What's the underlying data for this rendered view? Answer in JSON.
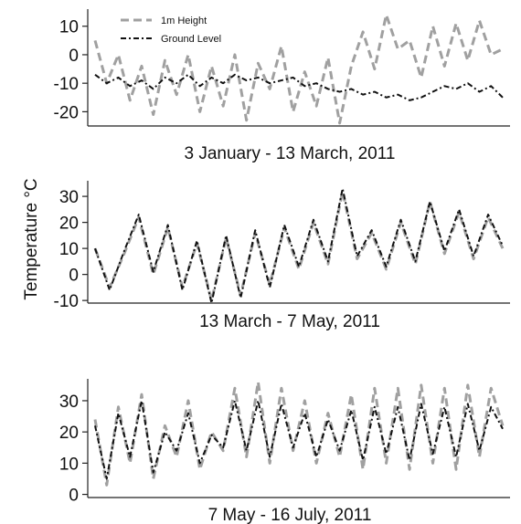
{
  "figure": {
    "ylabel": "Temperature °C",
    "legend": {
      "placement": "top-left",
      "entries": [
        {
          "label": "1m Height",
          "color": "#a0a0a0"
        },
        {
          "label": "Ground Level",
          "color": "#111111"
        }
      ]
    }
  },
  "chart_data": [
    {
      "type": "line",
      "title": "3 January - 13 March, 2011",
      "xlabel": "",
      "ylabel": "Temperature °C",
      "ylim": [
        -25,
        16
      ],
      "yticks": [
        10,
        0,
        -10,
        -20
      ],
      "grid": false,
      "series": [
        {
          "name": "1m Height",
          "color": "#a0a0a0",
          "x": [
            0,
            2,
            4,
            6,
            8,
            10,
            12,
            14,
            16,
            18,
            20,
            22,
            24,
            26,
            28,
            30,
            32,
            34,
            36,
            38,
            40,
            42,
            44,
            46,
            48,
            50,
            52,
            54,
            56,
            58,
            60,
            62,
            64,
            66,
            68,
            70
          ],
          "values": [
            5,
            -10,
            0,
            -16,
            -4,
            -21,
            -2,
            -14,
            0,
            -20,
            -4,
            -18,
            0,
            -23,
            -3,
            -12,
            3,
            -20,
            -6,
            -18,
            -1,
            -24,
            -4,
            8,
            -5,
            14,
            2,
            5,
            -8,
            10,
            -4,
            11,
            -2,
            12,
            0,
            2
          ]
        },
        {
          "name": "Ground Level",
          "color": "#111111",
          "x": [
            0,
            2,
            4,
            6,
            8,
            10,
            12,
            14,
            16,
            18,
            20,
            22,
            24,
            26,
            28,
            30,
            32,
            34,
            36,
            38,
            40,
            42,
            44,
            46,
            48,
            50,
            52,
            54,
            56,
            58,
            60,
            62,
            64,
            66,
            68,
            70
          ],
          "values": [
            -7,
            -10,
            -8,
            -11,
            -9,
            -12,
            -8,
            -10,
            -7,
            -11,
            -8,
            -10,
            -7,
            -9,
            -8,
            -10,
            -9,
            -8,
            -11,
            -10,
            -12,
            -13,
            -12,
            -14,
            -13,
            -15,
            -14,
            -16,
            -15,
            -13,
            -11,
            -12,
            -10,
            -13,
            -11,
            -15
          ]
        }
      ]
    },
    {
      "type": "line",
      "title": "13 March - 7 May, 2011",
      "xlabel": "",
      "ylabel": "Temperature °C",
      "ylim": [
        -11,
        36
      ],
      "yticks": [
        30,
        20,
        10,
        0,
        -10
      ],
      "grid": false,
      "series": [
        {
          "name": "1m Height",
          "color": "#a0a0a0",
          "x": [
            0,
            2,
            4,
            6,
            8,
            10,
            12,
            14,
            16,
            18,
            20,
            22,
            24,
            26,
            28,
            30,
            32,
            34,
            36,
            38,
            40,
            42,
            44,
            46,
            48,
            50,
            52,
            54,
            56
          ],
          "values": [
            10,
            -5,
            8,
            22,
            0,
            18,
            -5,
            12,
            -10,
            14,
            -8,
            16,
            -4,
            18,
            2,
            20,
            4,
            32,
            6,
            16,
            2,
            20,
            4,
            28,
            8,
            24,
            6,
            22,
            10
          ]
        },
        {
          "name": "Ground Level",
          "color": "#111111",
          "x": [
            0,
            2,
            4,
            6,
            8,
            10,
            12,
            14,
            16,
            18,
            20,
            22,
            24,
            26,
            28,
            30,
            32,
            34,
            36,
            38,
            40,
            42,
            44,
            46,
            48,
            50,
            52,
            54,
            56
          ],
          "values": [
            10,
            -6,
            9,
            23,
            1,
            19,
            -6,
            13,
            -11,
            15,
            -9,
            17,
            -5,
            19,
            3,
            21,
            5,
            33,
            7,
            17,
            3,
            21,
            5,
            28,
            9,
            25,
            7,
            23,
            11
          ]
        }
      ]
    },
    {
      "type": "line",
      "title": "7 May - 16 July, 2011",
      "xlabel": "",
      "ylabel": "Temperature °C",
      "ylim": [
        -1,
        37
      ],
      "yticks": [
        30,
        20,
        10,
        0
      ],
      "grid": false,
      "series": [
        {
          "name": "1m Height",
          "color": "#a0a0a0",
          "x": [
            0,
            2,
            4,
            6,
            8,
            10,
            12,
            14,
            16,
            18,
            20,
            22,
            24,
            26,
            28,
            30,
            32,
            34,
            36,
            38,
            40,
            42,
            44,
            46,
            48,
            50,
            52,
            54,
            56,
            58,
            60,
            62,
            64,
            66,
            68,
            70
          ],
          "values": [
            24,
            3,
            28,
            10,
            32,
            5,
            22,
            12,
            30,
            8,
            20,
            14,
            34,
            12,
            36,
            10,
            34,
            14,
            30,
            10,
            26,
            12,
            32,
            8,
            34,
            10,
            34,
            8,
            35,
            10,
            34,
            8,
            35,
            12,
            34,
            22
          ]
        },
        {
          "name": "Ground Level",
          "color": "#111111",
          "x": [
            0,
            2,
            4,
            6,
            8,
            10,
            12,
            14,
            16,
            18,
            20,
            22,
            24,
            26,
            28,
            30,
            32,
            34,
            36,
            38,
            40,
            42,
            44,
            46,
            48,
            50,
            52,
            54,
            56,
            58,
            60,
            62,
            64,
            66,
            68,
            70
          ],
          "values": [
            22,
            5,
            26,
            12,
            30,
            7,
            20,
            14,
            26,
            10,
            19,
            15,
            30,
            14,
            30,
            12,
            29,
            15,
            26,
            12,
            24,
            14,
            27,
            11,
            28,
            13,
            28,
            11,
            29,
            13,
            28,
            12,
            29,
            14,
            28,
            21
          ]
        }
      ]
    }
  ]
}
